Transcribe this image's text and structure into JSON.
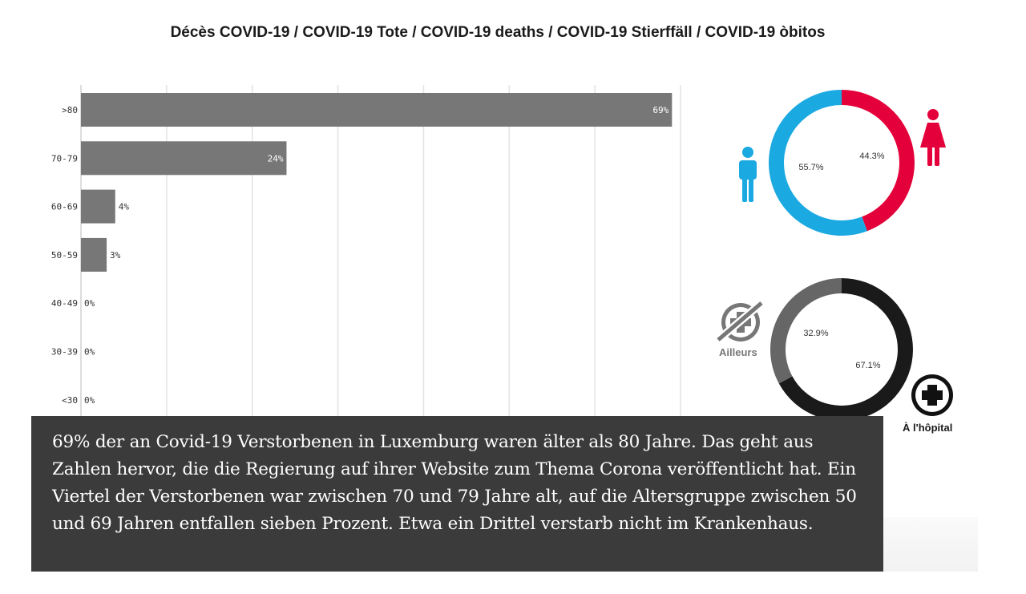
{
  "title": "Décès COVID-19 / COVID-19 Tote / COVID-19 deaths / COVID-19 Stierffäll / COVID-19 òbitos",
  "chart_data": [
    {
      "type": "bar",
      "orientation": "horizontal",
      "categories": [
        ">80",
        "70-79",
        "60-69",
        "50-59",
        "40-49",
        "30-39",
        "<30"
      ],
      "values": [
        69,
        24,
        4,
        3,
        0,
        0,
        0
      ],
      "value_labels": [
        "69%",
        "24%",
        "4%",
        "3%",
        "0%",
        "0%",
        "0%"
      ],
      "xlim": [
        0,
        70
      ],
      "grid": true,
      "bar_color": "#777777"
    },
    {
      "type": "pie",
      "style": "donut",
      "slices": [
        {
          "value": 44.3,
          "label": "44.3%",
          "color": "#e4003a",
          "icon": "female-icon"
        },
        {
          "value": 55.7,
          "label": "55.7%",
          "color": "#1ba9e1",
          "icon": "male-icon"
        }
      ]
    },
    {
      "type": "pie",
      "style": "donut",
      "slices": [
        {
          "value": 67.1,
          "label": "67.1%",
          "color": "#1a1a1a",
          "name": "À l'hôpital",
          "icon": "hospital-cross-icon"
        },
        {
          "value": 32.9,
          "label": "32.9%",
          "color": "#666666",
          "name": "Ailleurs",
          "icon": "crossed-out-hospital-icon"
        }
      ]
    }
  ],
  "caption": "69% der an Covid-19 Verstorbenen in Luxemburg waren älter als 80 Jahre. Das geht aus Zahlen hervor, die die Regierung auf ihrer Website zum Thema Corona veröffentlicht hat. Ein Viertel der Verstorbenen war zwischen 70 und 79 Jahre alt, auf die Altersgruppe zwischen 50 und 69 Jahren entfallen sieben Prozent. Etwa ein Drittel verstarb nicht im Krankenhaus."
}
